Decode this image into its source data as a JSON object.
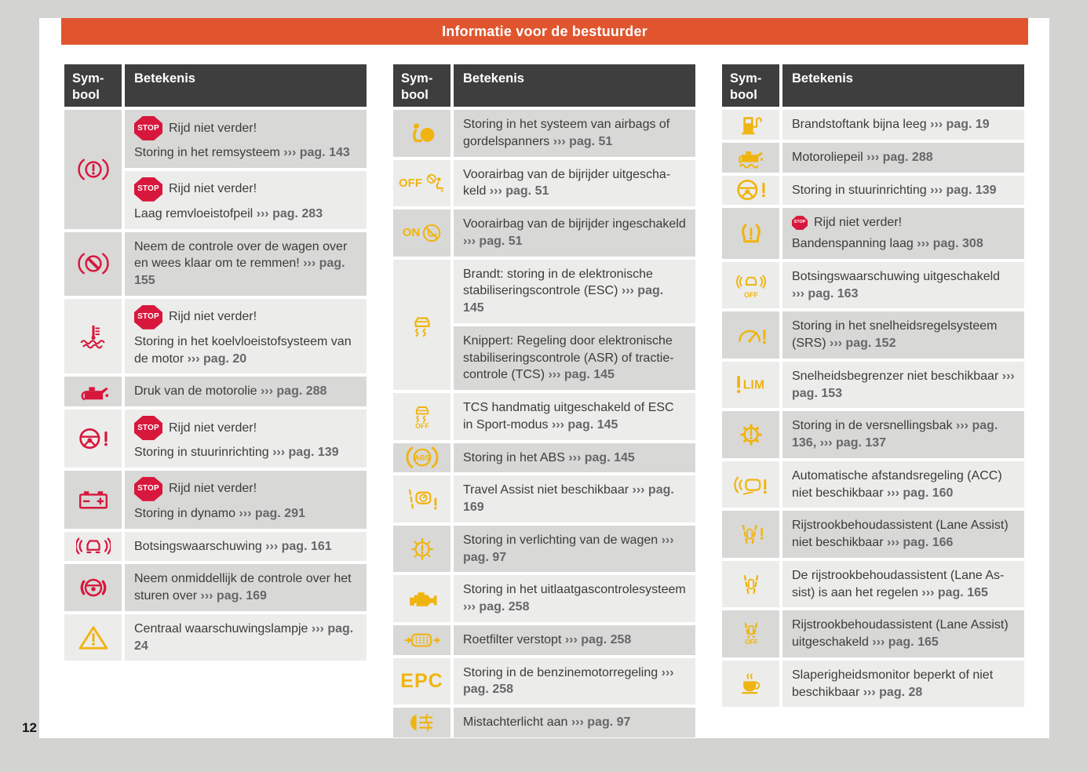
{
  "page": {
    "number": "12",
    "title": "Informatie voor de bestuurder"
  },
  "colors": {
    "accent_orange": "#e0552e",
    "symbol_red": "#d8173c",
    "symbol_yellow": "#f0b411",
    "header_bg": "#3e3e3e",
    "row_dark": "#d8d8d6",
    "row_light": "#ececea"
  },
  "table_header": {
    "symbol": "Sym-\nbool",
    "meaning": "Betekenis"
  },
  "stop_label": "STOP",
  "columns": [
    {
      "first_shade": "dark",
      "rows": [
        {
          "icon": "brake-warning",
          "icon_color": "red",
          "entries": [
            {
              "stop": "large",
              "stop_text": "Rijd niet verder!",
              "text": "Storing in het remsysteem",
              "ref": "››› pag. 143"
            },
            {
              "stop": "large",
              "stop_text": "Rijd niet verder!",
              "text": "Laag remvloeistofpeil",
              "ref": "››› pag. 283"
            }
          ]
        },
        {
          "icon": "brake-override",
          "icon_color": "red",
          "entries": [
            {
              "text": "Neem de controle over de wagen over en wees klaar om te remmen!",
              "ref": "››› pag. 155"
            }
          ]
        },
        {
          "icon": "coolant-temperature",
          "icon_color": "red",
          "entries": [
            {
              "stop": "large",
              "stop_text": "Rijd niet verder!",
              "text": "Storing in het koelvloeistofsysteem van de motor",
              "ref": "››› pag. 20"
            }
          ]
        },
        {
          "icon": "oil-pressure",
          "icon_color": "red",
          "entries": [
            {
              "text": "Druk van de motorolie",
              "ref": "››› pag. 288"
            }
          ]
        },
        {
          "icon": "steering-warning",
          "icon_color": "red",
          "entries": [
            {
              "stop": "large",
              "stop_text": "Rijd niet verder!",
              "text": "Storing in stuurinrichting",
              "ref": "››› pag. 139"
            }
          ]
        },
        {
          "icon": "battery",
          "icon_color": "red",
          "entries": [
            {
              "stop": "large",
              "stop_text": "Rijd niet verder!",
              "text": "Storing in dynamo",
              "ref": "››› pag. 291"
            }
          ]
        },
        {
          "icon": "collision-warning",
          "icon_color": "red",
          "entries": [
            {
              "text": "Botsingswaarschuwing",
              "ref": "››› pag. 161"
            }
          ]
        },
        {
          "icon": "hands-on-steering",
          "icon_color": "red",
          "entries": [
            {
              "text": "Neem onmiddellijk de controle over het sturen over",
              "ref": "››› pag. 169"
            }
          ]
        },
        {
          "icon": "warning-triangle",
          "icon_color": "yellow",
          "entries": [
            {
              "text": "Centraal waarschuwingslampje",
              "ref": "››› pag. 24"
            }
          ]
        }
      ]
    },
    {
      "first_shade": "dark",
      "rows": [
        {
          "icon": "airbag-warning",
          "icon_color": "yellow",
          "entries": [
            {
              "text": "Storing in het systeem van airbags of gordelspanners",
              "ref": "››› pag. 51"
            }
          ]
        },
        {
          "icon": "airbag-off",
          "icon_color": "yellow",
          "entries": [
            {
              "text": "Voorairbag van de bijrijder uitgescha­keld",
              "ref": "››› pag. 51"
            }
          ]
        },
        {
          "icon": "airbag-on",
          "icon_color": "yellow",
          "entries": [
            {
              "text": "Voorairbag van de bijrijder ingescha­keld",
              "ref": "››› pag. 51"
            }
          ]
        },
        {
          "icon": "esc",
          "icon_color": "yellow",
          "entries": [
            {
              "text": "Brandt: storing in de elektronische stabi­liseringscontrole (ESC)",
              "ref": "››› pag. 145"
            },
            {
              "text": "Knippert: Regeling door elektronische stabiliseringscontrole (ASR) of tractie­controle (TCS)",
              "ref": "››› pag. 145"
            }
          ]
        },
        {
          "icon": "esc-off",
          "icon_color": "yellow",
          "entries": [
            {
              "text": "TCS handmatig uitgeschakeld of ESC in Sport-modus",
              "ref": "››› pag. 145"
            }
          ]
        },
        {
          "icon": "abs",
          "icon_color": "yellow",
          "entries": [
            {
              "text": "Storing in het ABS",
              "ref": "››› pag. 145"
            }
          ]
        },
        {
          "icon": "travel-assist",
          "icon_color": "yellow",
          "entries": [
            {
              "text": "Travel Assist niet beschikbaar",
              "ref": "››› pag. 169"
            }
          ]
        },
        {
          "icon": "light-warning",
          "icon_color": "yellow",
          "entries": [
            {
              "text": "Storing in verlichting van de wagen",
              "ref": "››› pag. 97"
            }
          ]
        },
        {
          "icon": "check-engine",
          "icon_color": "yellow",
          "entries": [
            {
              "text": "Storing in het uitlaatgascontrolesys­teem",
              "ref": "››› pag. 258"
            }
          ]
        },
        {
          "icon": "particulate-filter",
          "icon_color": "yellow",
          "entries": [
            {
              "text": "Roetfilter verstopt",
              "ref": "››› pag. 258"
            }
          ]
        },
        {
          "icon": "epc",
          "icon_color": "yellow",
          "entries": [
            {
              "text": "Storing in de benzinemotorregeling",
              "ref": "››› pag. 258"
            }
          ]
        },
        {
          "icon": "rear-fog-light",
          "icon_color": "yellow",
          "entries": [
            {
              "text": "Mistachterlicht aan",
              "ref": "››› pag. 97"
            }
          ]
        }
      ]
    },
    {
      "first_shade": "light",
      "rows": [
        {
          "icon": "fuel-level",
          "icon_color": "yellow",
          "entries": [
            {
              "text": "Brandstoftank bijna leeg",
              "ref": "››› pag. 19"
            }
          ]
        },
        {
          "icon": "oil-level",
          "icon_color": "yellow",
          "entries": [
            {
              "text": "Motoroliepeil",
              "ref": "››› pag. 288"
            }
          ]
        },
        {
          "icon": "steering-warning-yellow",
          "icon_color": "yellow",
          "entries": [
            {
              "text": "Storing in stuurinrichting",
              "ref": "››› pag. 139"
            }
          ]
        },
        {
          "icon": "tire-pressure",
          "icon_color": "yellow",
          "entries": [
            {
              "stop": "small",
              "stop_text": "Rijd niet verder!",
              "text": "Bandenspanning laag",
              "ref": "››› pag. 308"
            }
          ]
        },
        {
          "icon": "collision-warning-off",
          "icon_color": "yellow",
          "entries": [
            {
              "text": "Botsingswaarschuwing uitgeschakeld",
              "ref": "››› pag. 163"
            }
          ]
        },
        {
          "icon": "cruise-control-warning",
          "icon_color": "yellow",
          "entries": [
            {
              "text": "Storing in het snelheidsregelsysteem (SRS)",
              "ref": "››› pag. 152"
            }
          ]
        },
        {
          "icon": "speed-limiter",
          "icon_color": "yellow",
          "entries": [
            {
              "text": "Snelheidsbegrenzer niet beschikbaar",
              "ref": "››› pag. 153"
            }
          ]
        },
        {
          "icon": "gearbox-warning",
          "icon_color": "yellow",
          "entries": [
            {
              "text": "Storing in de versnellingsbak",
              "ref": "››› pag. 136, ››› pag. 137"
            }
          ]
        },
        {
          "icon": "acc-warning",
          "icon_color": "yellow",
          "entries": [
            {
              "text": "Automatische afstandsregeling (ACC) niet beschikbaar",
              "ref": "››› pag. 160"
            }
          ]
        },
        {
          "icon": "lane-assist-warning",
          "icon_color": "yellow",
          "entries": [
            {
              "text": "Rijstrookbehoudassistent (Lane Assist) niet beschikbaar",
              "ref": "››› pag. 166"
            }
          ]
        },
        {
          "icon": "lane-assist-active",
          "icon_color": "yellow",
          "entries": [
            {
              "text": "De rijstrookbehoudassistent (Lane As­sist) is aan het regelen",
              "ref": "››› pag. 165"
            }
          ]
        },
        {
          "icon": "lane-assist-off",
          "icon_color": "yellow",
          "entries": [
            {
              "text": "Rijstrookbehoudassistent (Lane Assist) uitgeschakeld",
              "ref": "››› pag. 165"
            }
          ]
        },
        {
          "icon": "drowsiness-monitor",
          "icon_color": "yellow",
          "entries": [
            {
              "text": "Slaperigheidsmonitor beperkt of niet beschikbaar",
              "ref": "››› pag. 28"
            }
          ]
        }
      ]
    }
  ]
}
